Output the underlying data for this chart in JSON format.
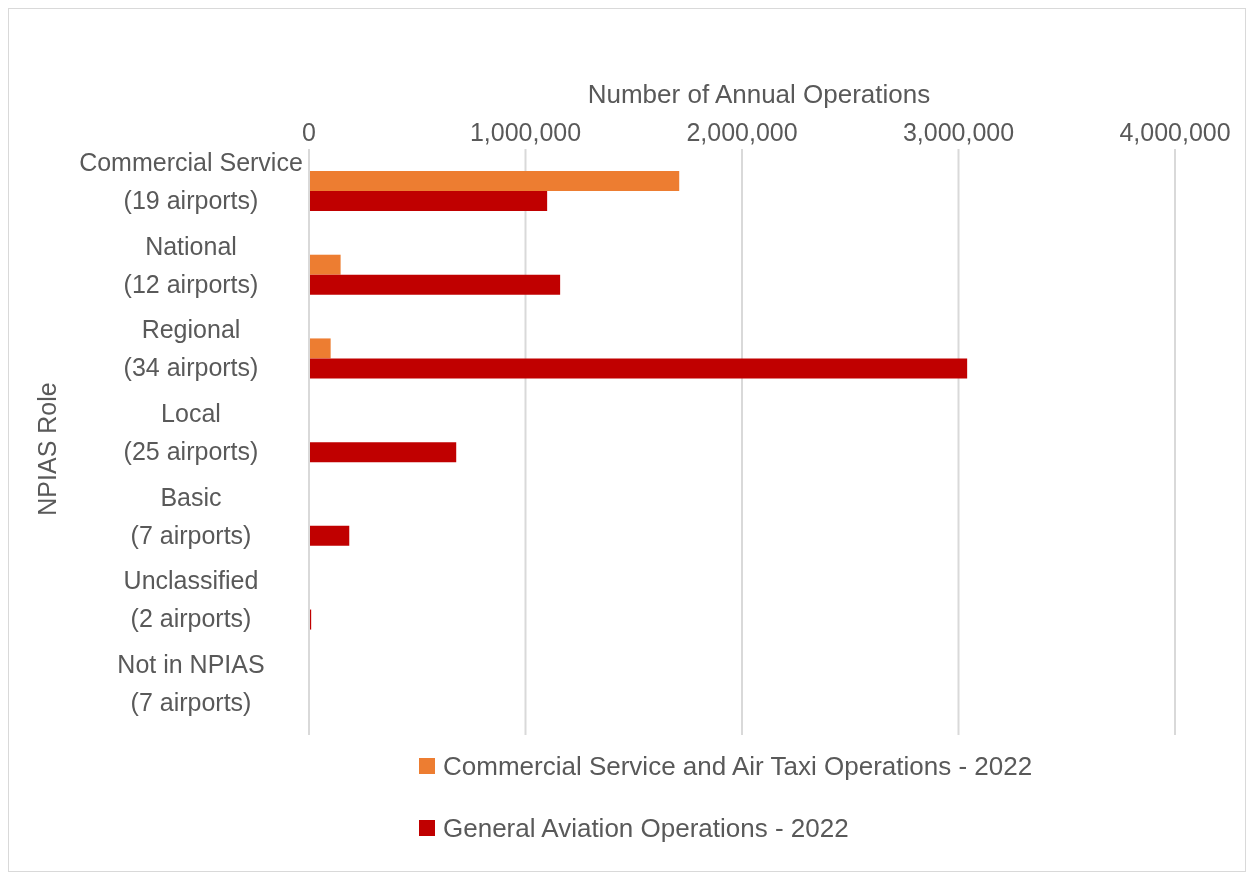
{
  "chart_data": {
    "type": "bar",
    "orientation": "horizontal",
    "xlabel": "Number of Annual Operations",
    "ylabel": "NPIAS Role",
    "categories": [
      "Commercial Service (19 airports)",
      "National (12 airports)",
      "Regional (34 airports)",
      "Local (25 airports)",
      "Basic (7 airports)",
      "Unclassified (2 airports)",
      "Not in NPIAS (7 airports)"
    ],
    "series": [
      {
        "name": "Commercial Service and Air Taxi Operations - 2022",
        "color": "#ed7d31",
        "values": [
          1710000,
          146000,
          100000,
          0,
          0,
          0,
          0
        ]
      },
      {
        "name": "General Aviation Operations - 2022",
        "color": "#c00000",
        "values": [
          1100000,
          1160000,
          3040000,
          680000,
          186000,
          10000,
          0
        ]
      }
    ],
    "xlim": [
      0,
      4000000
    ],
    "xticks": [
      {
        "value": 0,
        "label": "0"
      },
      {
        "value": 1000000,
        "label": "1,000,000"
      },
      {
        "value": 2000000,
        "label": "2,000,000"
      },
      {
        "value": 3000000,
        "label": "3,000,000"
      },
      {
        "value": 4000000,
        "label": "4,000,000"
      }
    ],
    "grid": "x",
    "legend": "bottom"
  }
}
